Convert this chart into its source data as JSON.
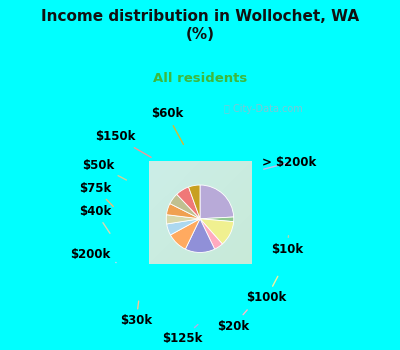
{
  "title": "Income distribution in Wollochet, WA\n(%)",
  "subtitle": "All residents",
  "title_color": "#111111",
  "subtitle_color": "#3db83d",
  "background_top": "#00ffff",
  "background_chart_tl": "#e0f5f0",
  "background_chart_br": "#d0eedd",
  "watermark": "ⓘ City-Data.com",
  "labels": [
    "> $200k",
    "$10k",
    "$100k",
    "$20k",
    "$125k",
    "$30k",
    "$200k",
    "$40k",
    "$75k",
    "$50k",
    "$150k",
    "$60k"
  ],
  "values": [
    22,
    2,
    11,
    4,
    13,
    9,
    5,
    4,
    5,
    5,
    6,
    5
  ],
  "colors": [
    "#b8aad8",
    "#90c890",
    "#f0f090",
    "#ffaabf",
    "#9090d8",
    "#ffaa60",
    "#add8f0",
    "#d8d8a8",
    "#f0a050",
    "#c0c090",
    "#f07878",
    "#c8a020"
  ],
  "label_fontsize": 8.5,
  "figsize": [
    4.0,
    3.5
  ],
  "dpi": 100,
  "startangle": 90
}
